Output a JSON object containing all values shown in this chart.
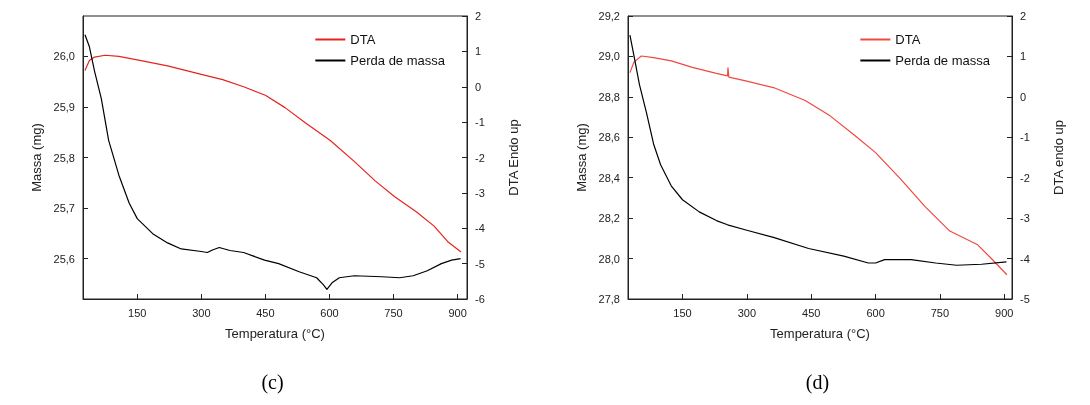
{
  "chart_data": [
    {
      "type": "line",
      "title": "(c)",
      "xlabel": "Temperatura (°C)",
      "ylabel": "Massa (mg)",
      "y2label": "DTA Endo up",
      "xlim": [
        23,
        922
      ],
      "xticks": [
        150,
        300,
        450,
        600,
        750,
        900
      ],
      "ylim": [
        25.52,
        26.08
      ],
      "yticks": [
        {
          "value": 25.6,
          "label": "25,6"
        },
        {
          "value": 25.7,
          "label": "25,7"
        },
        {
          "value": 25.8,
          "label": "25,8"
        },
        {
          "value": 25.9,
          "label": "25,9"
        },
        {
          "value": 26.0,
          "label": "26,0"
        }
      ],
      "y2lim": [
        -6,
        2
      ],
      "y2ticks": [
        -6,
        -5,
        -4,
        -3,
        -2,
        -1,
        0,
        1,
        2
      ],
      "legend": "top right",
      "grid": false,
      "marker": "none",
      "line_style": "solid",
      "series": [
        {
          "name": "DTA",
          "color": "#e8231f",
          "axis": "y2",
          "x": [
            27.6,
            38,
            50,
            75,
            107,
            150,
            221,
            300,
            350,
            399,
            450,
            496,
            545,
            602,
            658,
            707,
            752,
            804,
            845,
            877,
            908
          ],
          "values": [
            0.46,
            0.74,
            0.84,
            0.89,
            0.86,
            0.76,
            0.59,
            0.35,
            0.2,
            0.0,
            -0.24,
            -0.59,
            -1.03,
            -1.52,
            -2.11,
            -2.66,
            -3.1,
            -3.54,
            -3.94,
            -4.38,
            -4.67
          ]
        },
        {
          "name": "Perda de massa",
          "color": "#000000",
          "axis": "y",
          "x": [
            27.6,
            38,
            50,
            66,
            83,
            107,
            131,
            150,
            188,
            221,
            253,
            300,
            314,
            326,
            342,
            367,
            399,
            448,
            481,
            529,
            570,
            586,
            594,
            606,
            623,
            658,
            723,
            764,
            796,
            829,
            862,
            886,
            907
          ],
          "values": [
            26.043,
            26.019,
            25.971,
            25.916,
            25.834,
            25.765,
            25.71,
            25.679,
            25.648,
            25.631,
            25.619,
            25.614,
            25.612,
            25.617,
            25.622,
            25.616,
            25.612,
            25.597,
            25.59,
            25.574,
            25.562,
            25.548,
            25.539,
            25.552,
            25.562,
            25.566,
            25.564,
            25.562,
            25.566,
            25.576,
            25.59,
            25.597,
            25.6
          ]
        }
      ]
    },
    {
      "type": "line",
      "title": "(d)",
      "xlabel": "Temperatura (°C)",
      "ylabel": "Massa (mg)",
      "y2label": "DTA endo up",
      "xlim": [
        23,
        918
      ],
      "xticks": [
        150,
        300,
        450,
        600,
        750,
        900
      ],
      "ylim": [
        27.8,
        29.2
      ],
      "yticks": [
        {
          "value": 27.8,
          "label": "27,8"
        },
        {
          "value": 28.0,
          "label": "28,0"
        },
        {
          "value": 28.2,
          "label": "28,2"
        },
        {
          "value": 28.4,
          "label": "28,4"
        },
        {
          "value": 28.6,
          "label": "28,6"
        },
        {
          "value": 28.8,
          "label": "28,8"
        },
        {
          "value": 29.0,
          "label": "29,0"
        },
        {
          "value": 29.2,
          "label": "29,2"
        }
      ],
      "y2lim": [
        -5,
        2
      ],
      "y2ticks": [
        -5,
        -4,
        -3,
        -2,
        -1,
        0,
        1,
        2
      ],
      "legend": "top right",
      "grid": false,
      "marker": "none",
      "line_style": "solid",
      "series": [
        {
          "name": "DTA",
          "color": "#f0483f",
          "axis": "y2",
          "x": [
            27.5,
            37,
            54,
            82.6,
            124,
            173,
            229,
            255,
            256,
            258,
            300,
            362,
            436,
            494,
            551,
            600,
            658,
            716,
            773,
            806,
            838,
            871,
            906
          ],
          "values": [
            0.6,
            0.86,
            1.01,
            0.97,
            0.89,
            0.73,
            0.58,
            0.52,
            0.72,
            0.49,
            0.39,
            0.23,
            -0.09,
            -0.47,
            -0.95,
            -1.38,
            -2.03,
            -2.72,
            -3.32,
            -3.49,
            -3.66,
            -4.01,
            -4.4
          ]
        },
        {
          "name": "Perda de massa",
          "color": "#000000",
          "axis": "y",
          "x": [
            27.5,
            37.4,
            49.7,
            66,
            82.6,
            99,
            123.7,
            150,
            189,
            229,
            255,
            300,
            362,
            444,
            526,
            583,
            600,
            621,
            683,
            740,
            789,
            847,
            905
          ],
          "values": [
            29.105,
            28.998,
            28.86,
            28.722,
            28.567,
            28.464,
            28.36,
            28.291,
            28.231,
            28.188,
            28.167,
            28.14,
            28.105,
            28.05,
            28.012,
            27.978,
            27.978,
            27.995,
            27.995,
            27.978,
            27.967,
            27.972,
            27.984
          ]
        }
      ]
    }
  ]
}
